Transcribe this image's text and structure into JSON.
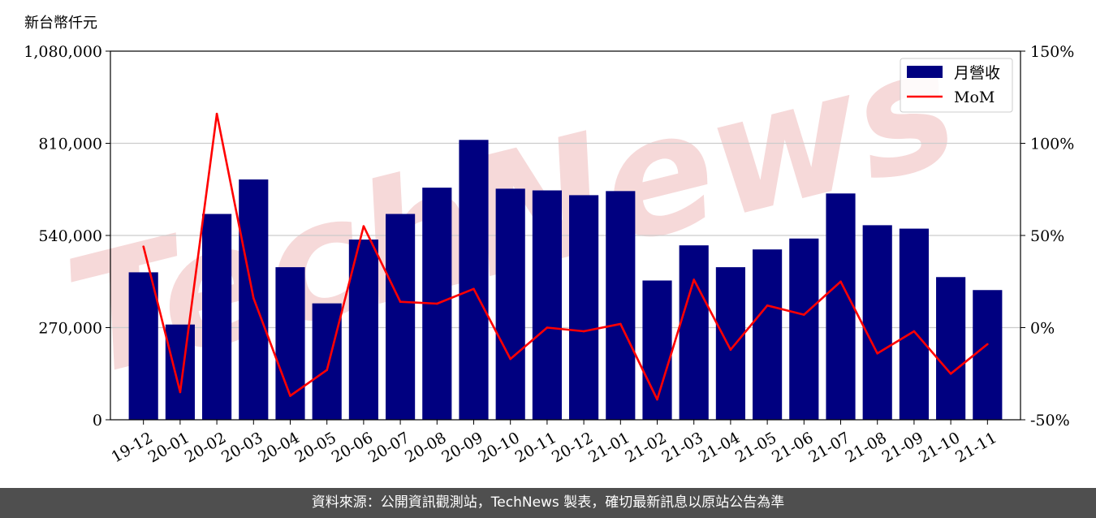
{
  "unit_label": "新台幣仟元",
  "footer_text": "資料來源：公開資訊觀測站，TechNews 製表，確切最新訊息以原站公告為準",
  "watermark": "TechNews",
  "colors": {
    "bar": "#000080",
    "line": "#ff0000",
    "grid": "#cccccc",
    "footer_bg": "#4f4f4f",
    "watermark": "#f6d9d9"
  },
  "chart_data": {
    "type": "bar",
    "categories": [
      "19-12",
      "20-01",
      "20-02",
      "20-03",
      "20-04",
      "20-05",
      "20-06",
      "20-07",
      "20-08",
      "20-09",
      "20-10",
      "20-11",
      "20-12",
      "21-01",
      "21-02",
      "21-03",
      "21-04",
      "21-05",
      "21-06",
      "21-07",
      "21-08",
      "21-09",
      "21-10",
      "21-11"
    ],
    "series": [
      {
        "name": "月營收",
        "type": "bar",
        "axis": "left",
        "values": [
          432000,
          279000,
          603000,
          704000,
          447000,
          341000,
          528000,
          603000,
          680000,
          820000,
          677000,
          672000,
          658000,
          670000,
          408000,
          511000,
          447000,
          499000,
          531000,
          663000,
          570000,
          560000,
          418000,
          380000
        ]
      },
      {
        "name": "MoM",
        "type": "line",
        "axis": "right",
        "values": [
          44,
          -35,
          116,
          16,
          -37,
          -23,
          55,
          14,
          13,
          21,
          -17,
          0,
          -2,
          2,
          -39,
          26,
          -12,
          12,
          7,
          25,
          -14,
          -2,
          -25,
          -9
        ]
      }
    ],
    "y_left": {
      "ticks": [
        "0",
        "270,000",
        "540,000",
        "810,000",
        "1,080,000"
      ],
      "lim": [
        0,
        1080000
      ]
    },
    "y_right": {
      "ticks": [
        "-50%",
        "0%",
        "50%",
        "100%",
        "150%"
      ],
      "lim": [
        -50,
        150
      ]
    },
    "legend": "top-right",
    "grid": true
  }
}
